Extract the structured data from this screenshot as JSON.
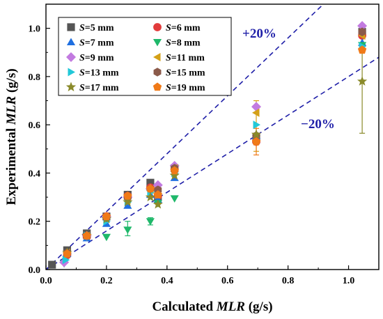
{
  "chart_data": {
    "type": "scatter",
    "xlabel": "Calculated MLR (g/s)",
    "ylabel": "Experimental MLR (g/s)",
    "xlim": [
      0.0,
      1.1
    ],
    "ylim": [
      0.0,
      1.1
    ],
    "x_ticks": [
      "0.0",
      "0.2",
      "0.4",
      "0.6",
      "0.8",
      "1.0"
    ],
    "y_ticks": [
      "0.0",
      "0.2",
      "0.4",
      "0.6",
      "0.8",
      "1.0"
    ],
    "grid": false,
    "legend_position": "top-left",
    "reference_lines": [
      {
        "label": "+20%",
        "slope": 1.2,
        "color": "#1f1fa8"
      },
      {
        "label": "−20%",
        "slope": 0.8,
        "color": "#1f1fa8"
      }
    ],
    "series": [
      {
        "name": "S=5 mm",
        "marker": "square",
        "color": "#555555",
        "points": [
          [
            0.02,
            0.02
          ],
          [
            0.07,
            0.08
          ],
          [
            0.135,
            0.15
          ],
          [
            0.2,
            0.22
          ],
          [
            0.27,
            0.31
          ],
          [
            0.345,
            0.36
          ],
          [
            0.37,
            0.3
          ],
          [
            0.425,
            0.42
          ],
          [
            0.695,
            0.54
          ],
          [
            1.045,
            0.985
          ]
        ]
      },
      {
        "name": "S=6 mm",
        "marker": "circle",
        "color": "#e23b3b",
        "points": [
          [
            0.07,
            0.06
          ],
          [
            0.135,
            0.135
          ],
          [
            0.2,
            0.22
          ],
          [
            0.27,
            0.305
          ],
          [
            0.345,
            0.34
          ],
          [
            0.37,
            0.305
          ],
          [
            0.425,
            0.415
          ],
          [
            0.695,
            0.53
          ],
          [
            1.045,
            0.97
          ]
        ]
      },
      {
        "name": "S=7 mm",
        "marker": "triangle-up",
        "color": "#1f6fe0",
        "points": [
          [
            0.07,
            0.065
          ],
          [
            0.135,
            0.13
          ],
          [
            0.2,
            0.19
          ],
          [
            0.27,
            0.265
          ],
          [
            0.345,
            0.31
          ],
          [
            0.37,
            0.29
          ],
          [
            0.425,
            0.38
          ],
          [
            0.695,
            0.555
          ],
          [
            1.045,
            0.94
          ]
        ]
      },
      {
        "name": "S=8 mm",
        "marker": "triangle-down",
        "color": "#1fb86a",
        "points": [
          [
            0.06,
            0.025
          ],
          [
            0.135,
            0.135
          ],
          [
            0.2,
            0.135
          ],
          [
            0.27,
            0.165
          ],
          [
            0.345,
            0.2
          ],
          [
            0.37,
            0.275
          ],
          [
            0.425,
            0.295
          ],
          [
            0.695,
            0.545
          ],
          [
            1.045,
            0.93
          ]
        ]
      },
      {
        "name": "S=9 mm",
        "marker": "diamond",
        "color": "#c27ae0",
        "points": [
          [
            0.06,
            0.03
          ],
          [
            0.135,
            0.14
          ],
          [
            0.2,
            0.22
          ],
          [
            0.27,
            0.3
          ],
          [
            0.345,
            0.335
          ],
          [
            0.37,
            0.35
          ],
          [
            0.425,
            0.43
          ],
          [
            0.695,
            0.675
          ],
          [
            1.045,
            1.01
          ]
        ]
      },
      {
        "name": "S=11 mm",
        "marker": "triangle-left",
        "color": "#d4a017",
        "points": [
          [
            0.07,
            0.07
          ],
          [
            0.135,
            0.14
          ],
          [
            0.2,
            0.21
          ],
          [
            0.27,
            0.29
          ],
          [
            0.345,
            0.33
          ],
          [
            0.37,
            0.32
          ],
          [
            0.425,
            0.42
          ],
          [
            0.695,
            0.65
          ],
          [
            1.045,
            0.97
          ]
        ]
      },
      {
        "name": "S=13 mm",
        "marker": "triangle-right",
        "color": "#22c8d8",
        "points": [
          [
            0.065,
            0.04
          ],
          [
            0.135,
            0.14
          ],
          [
            0.2,
            0.2
          ],
          [
            0.27,
            0.28
          ],
          [
            0.345,
            0.32
          ],
          [
            0.37,
            0.31
          ],
          [
            0.425,
            0.4
          ],
          [
            0.695,
            0.6
          ],
          [
            1.045,
            0.925
          ]
        ]
      },
      {
        "name": "S=15 mm",
        "marker": "hexagon",
        "color": "#8b5a4a",
        "points": [
          [
            0.07,
            0.07
          ],
          [
            0.135,
            0.14
          ],
          [
            0.2,
            0.215
          ],
          [
            0.27,
            0.3
          ],
          [
            0.345,
            0.335
          ],
          [
            0.37,
            0.33
          ],
          [
            0.425,
            0.42
          ],
          [
            0.695,
            0.555
          ],
          [
            1.045,
            0.985
          ]
        ]
      },
      {
        "name": "S=17 mm",
        "marker": "star",
        "color": "#8a8a2a",
        "points": [
          [
            0.07,
            0.07
          ],
          [
            0.135,
            0.14
          ],
          [
            0.2,
            0.21
          ],
          [
            0.27,
            0.28
          ],
          [
            0.345,
            0.3
          ],
          [
            0.37,
            0.27
          ],
          [
            0.425,
            0.39
          ],
          [
            0.695,
            0.56
          ],
          [
            1.045,
            0.78
          ]
        ]
      },
      {
        "name": "S=19 mm",
        "marker": "pentagon",
        "color": "#f07a18",
        "points": [
          [
            0.07,
            0.065
          ],
          [
            0.135,
            0.14
          ],
          [
            0.2,
            0.22
          ],
          [
            0.27,
            0.305
          ],
          [
            0.345,
            0.335
          ],
          [
            0.37,
            0.31
          ],
          [
            0.425,
            0.41
          ],
          [
            0.695,
            0.53
          ],
          [
            1.045,
            0.91
          ]
        ]
      }
    ],
    "error_bars": [
      {
        "x": 0.695,
        "y": 0.65,
        "low": 0.49,
        "high": 0.7,
        "color": "#d4a017"
      },
      {
        "x": 0.695,
        "y": 0.53,
        "low": 0.475,
        "high": 0.585,
        "color": "#f07a18"
      },
      {
        "x": 0.27,
        "y": 0.165,
        "low": 0.14,
        "high": 0.2,
        "color": "#1fb86a"
      },
      {
        "x": 0.345,
        "y": 0.2,
        "low": 0.185,
        "high": 0.215,
        "color": "#1fb86a"
      },
      {
        "x": 1.045,
        "y": 0.78,
        "low": 0.565,
        "high": 0.975,
        "color": "#8a8a2a"
      }
    ]
  }
}
